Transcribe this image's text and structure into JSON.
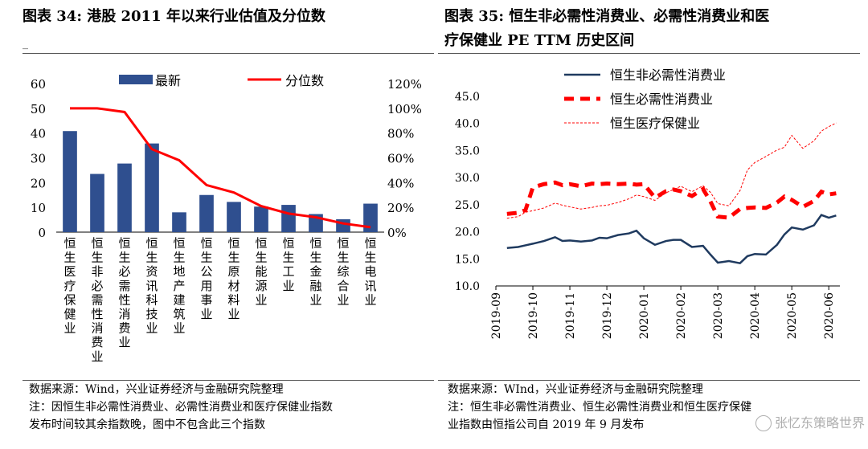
{
  "left": {
    "title_lines": [
      "图表 34:  港股 2011 年以来行业估值及分位数"
    ],
    "source_lines": [
      "数据来源：Wind，兴业证券经济与金融研究院整理",
      "注：因恒生非必需性消费业、必需性消费业和医疗保健业指数",
      "发布时间较其余指数晚，图中不包含此三个指数"
    ]
  },
  "right": {
    "title_lines": [
      "图表 35:  恒生非必需性消费业、必需性消费业和医",
      "疗保健业 PE TTM 历史区间"
    ],
    "source_lines": [
      "数据来源：WInd，兴业证券经济与金融研究院整理",
      "注：恒生非必需性消费业、恒生必需性消费业和恒生医疗保健",
      "业指数由恒指公司自 2019 年 9 月发布"
    ]
  },
  "watermark": "张忆东策略世界",
  "chart_data": [
    {
      "type": "bar",
      "title": "港股 2011 年以来行业估值及分位数",
      "categories": [
        "恒生医疗保健业",
        "恒生非必需性消费业",
        "恒生必需性消费业",
        "恒生资讯科技业",
        "恒生地产建筑业",
        "恒生公用事业",
        "恒生原材料业",
        "恒生能源业",
        "恒生工业",
        "恒生金融业",
        "恒生综合业",
        "恒生电讯业"
      ],
      "series": [
        {
          "name": "最新",
          "axis": "left",
          "kind": "bar",
          "color": "#2F4F8F",
          "values": [
            40.8,
            23.5,
            27.7,
            35.8,
            8.0,
            15.0,
            12.2,
            10.3,
            11.0,
            7.3,
            5.2,
            11.5
          ]
        },
        {
          "name": "分位数",
          "axis": "right",
          "kind": "line",
          "color": "#FF0000",
          "values": [
            1.0,
            1.0,
            0.97,
            0.67,
            0.58,
            0.38,
            0.32,
            0.21,
            0.15,
            0.12,
            0.07,
            0.04
          ]
        }
      ],
      "ylim_left": [
        0,
        60
      ],
      "yticks_left": [
        "0",
        "10",
        "20",
        "30",
        "40",
        "50",
        "60"
      ],
      "ylim_right": [
        0,
        1.2
      ],
      "yticks_right": [
        "0%",
        "20%",
        "40%",
        "60%",
        "80%",
        "100%",
        "120%"
      ],
      "legend_position": "top"
    },
    {
      "type": "line",
      "title": "恒生非必需性消费业、必需性消费业和医疗保健业 PE TTM 历史区间",
      "x_ticks": [
        "2019-09",
        "2019-10",
        "2019-11",
        "2019-12",
        "2020-01",
        "2020-02",
        "2020-03",
        "2020-04",
        "2020-05",
        "2020-06"
      ],
      "ylim": [
        10,
        45
      ],
      "yticks": [
        "10.0",
        "15.0",
        "20.0",
        "25.0",
        "30.0",
        "35.0",
        "40.0",
        "45.0"
      ],
      "x_range": [
        0,
        9.3
      ],
      "series": [
        {
          "name": "恒生非必需性消费业",
          "style": "solid",
          "color": "#1F3A5F",
          "x": [
            0.3,
            0.6,
            0.8,
            1.0,
            1.3,
            1.6,
            1.8,
            2.0,
            2.3,
            2.6,
            2.8,
            3.0,
            3.3,
            3.6,
            3.8,
            4.0,
            4.3,
            4.6,
            4.8,
            5.0,
            5.3,
            5.6,
            5.8,
            6.0,
            6.3,
            6.6,
            6.8,
            7.0,
            7.3,
            7.6,
            7.8,
            8.0,
            8.3,
            8.6,
            8.8,
            9.0,
            9.2
          ],
          "values": [
            17.0,
            17.2,
            17.5,
            17.8,
            18.3,
            19.0,
            18.3,
            18.4,
            18.2,
            18.4,
            18.9,
            18.8,
            19.4,
            19.7,
            20.2,
            18.8,
            17.6,
            18.3,
            18.5,
            18.5,
            17.2,
            17.4,
            15.8,
            14.3,
            14.6,
            14.2,
            15.5,
            15.9,
            15.8,
            17.6,
            19.5,
            20.8,
            20.4,
            21.2,
            23.1,
            22.6,
            23.0
          ]
        },
        {
          "name": "恒生必需性消费业",
          "style": "dashed",
          "color": "#FF0000",
          "x": [
            0.3,
            0.6,
            0.8,
            1.0,
            1.3,
            1.6,
            1.8,
            2.0,
            2.3,
            2.6,
            2.8,
            3.0,
            3.3,
            3.6,
            3.8,
            4.0,
            4.3,
            4.6,
            4.8,
            5.0,
            5.3,
            5.6,
            5.8,
            6.0,
            6.3,
            6.6,
            6.8,
            7.0,
            7.3,
            7.6,
            7.8,
            8.0,
            8.3,
            8.6,
            8.8,
            9.0,
            9.2
          ],
          "values": [
            23.3,
            23.5,
            24.0,
            28.2,
            28.8,
            29.1,
            28.6,
            28.8,
            28.4,
            28.9,
            28.8,
            28.9,
            28.8,
            28.9,
            28.7,
            28.8,
            26.3,
            27.5,
            27.8,
            27.5,
            26.6,
            27.9,
            25.6,
            22.8,
            22.6,
            24.2,
            24.4,
            24.5,
            24.4,
            25.4,
            26.5,
            25.9,
            24.6,
            25.7,
            27.4,
            26.9,
            27.1
          ]
        },
        {
          "name": "恒生医疗保健业",
          "style": "dotted",
          "color": "#FF0000",
          "x": [
            0.3,
            0.6,
            0.8,
            1.0,
            1.3,
            1.6,
            1.8,
            2.0,
            2.3,
            2.6,
            2.8,
            3.0,
            3.3,
            3.6,
            3.8,
            4.0,
            4.3,
            4.6,
            4.8,
            5.0,
            5.3,
            5.6,
            5.8,
            6.0,
            6.3,
            6.6,
            6.8,
            7.0,
            7.3,
            7.6,
            7.8,
            8.0,
            8.3,
            8.6,
            8.8,
            9.0,
            9.2
          ],
          "values": [
            22.5,
            22.8,
            23.6,
            23.9,
            24.4,
            25.3,
            24.9,
            24.6,
            24.2,
            24.5,
            24.8,
            24.9,
            25.4,
            26.1,
            26.8,
            26.5,
            25.8,
            27.2,
            27.8,
            28.4,
            27.4,
            28.5,
            27.3,
            25.2,
            24.8,
            27.6,
            31.4,
            32.8,
            33.9,
            35.1,
            35.6,
            37.8,
            35.4,
            36.8,
            38.6,
            39.4,
            40.1
          ]
        }
      ],
      "legend_position": "top-left"
    }
  ]
}
